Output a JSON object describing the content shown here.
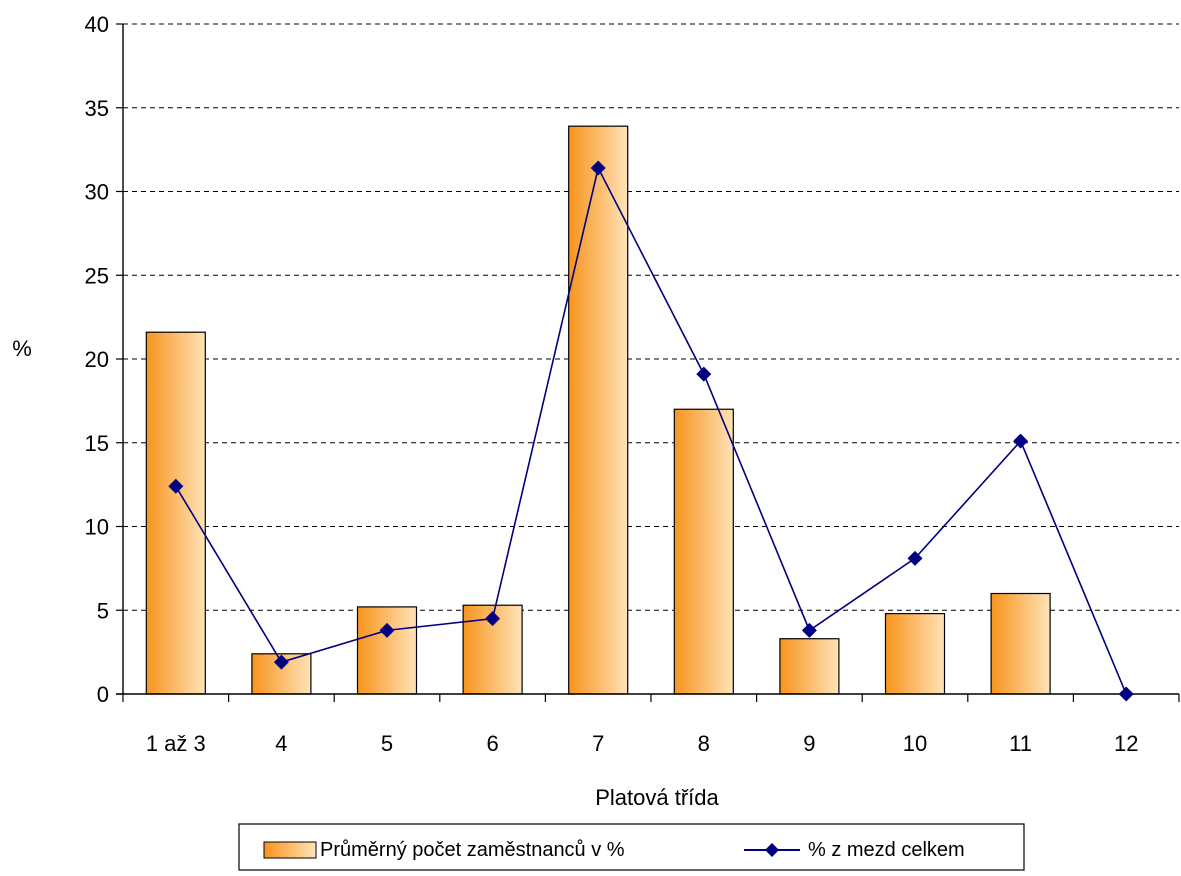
{
  "chart_data": {
    "type": "bar",
    "categories": [
      "1 až 3",
      "4",
      "5",
      "6",
      "7",
      "8",
      "9",
      "10",
      "11",
      "12"
    ],
    "series": [
      {
        "name": "Průměrný počet zaměstnanců v %",
        "type": "bar",
        "values": [
          21.6,
          2.4,
          5.2,
          5.3,
          33.9,
          17.0,
          3.3,
          4.8,
          6.0,
          0.0
        ],
        "color_start": "#F7941D",
        "color_end": "#FFE3B8"
      },
      {
        "name": "% z mezd celkem",
        "type": "line",
        "marker": "diamond",
        "values": [
          12.4,
          1.9,
          3.8,
          4.5,
          31.4,
          19.1,
          3.8,
          8.1,
          15.1,
          0.0
        ],
        "color": "#000080"
      }
    ],
    "title": "",
    "xlabel": "Platová třída",
    "ylabel": "%",
    "ylim": [
      0,
      40
    ],
    "yticks": [
      "0",
      "5",
      "10",
      "15",
      "20",
      "25",
      "30",
      "35",
      "40"
    ],
    "grid": "horizontal-dashed",
    "legend_position": "bottom"
  }
}
